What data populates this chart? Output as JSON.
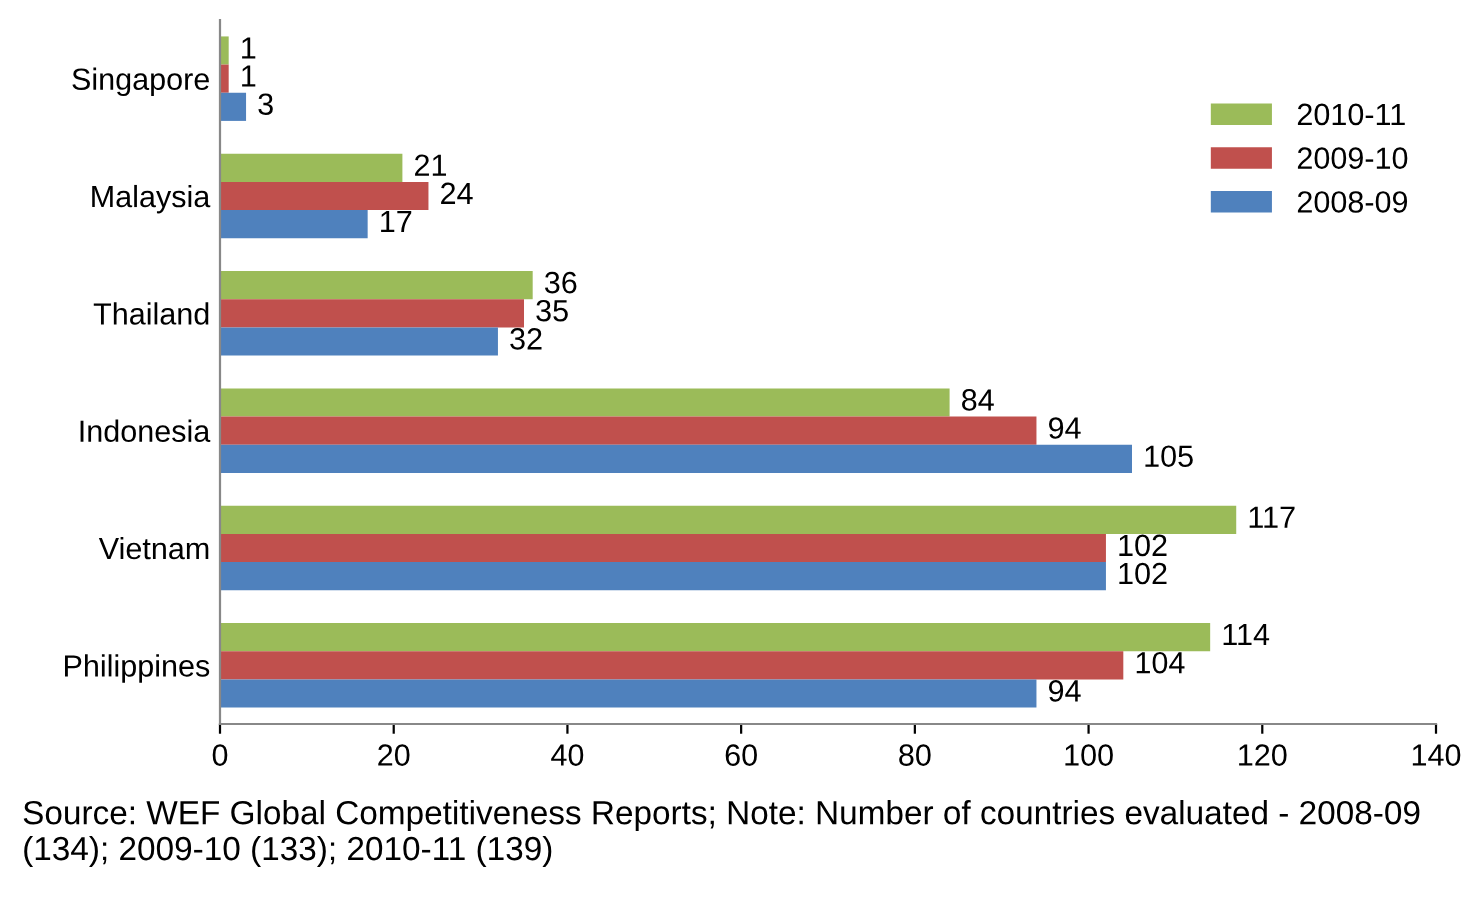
{
  "chart_data": {
    "type": "bar",
    "orientation": "horizontal",
    "categories": [
      "Singapore",
      "Malaysia",
      "Thailand",
      "Indonesia",
      "Vietnam",
      "Philippines"
    ],
    "series": [
      {
        "name": "2010-11",
        "color": "#9bbb59",
        "values": [
          1,
          21,
          36,
          84,
          117,
          114
        ]
      },
      {
        "name": "2009-10",
        "color": "#c0504d",
        "values": [
          1,
          24,
          35,
          94,
          102,
          104
        ]
      },
      {
        "name": "2008-09",
        "color": "#4f81bd",
        "values": [
          3,
          17,
          32,
          105,
          102,
          94
        ]
      }
    ],
    "xlim": [
      0,
      140
    ],
    "xticks": [
      0,
      20,
      40,
      60,
      80,
      100,
      120,
      140
    ],
    "data_labels": true,
    "grid": false,
    "legend": "right",
    "annotations": [
      "Source: WEF Global Competitiveness Reports; Note: Number of countries evaluated - 2008-09 (134); 2009-10 (133); 2010-11 (139)"
    ]
  }
}
